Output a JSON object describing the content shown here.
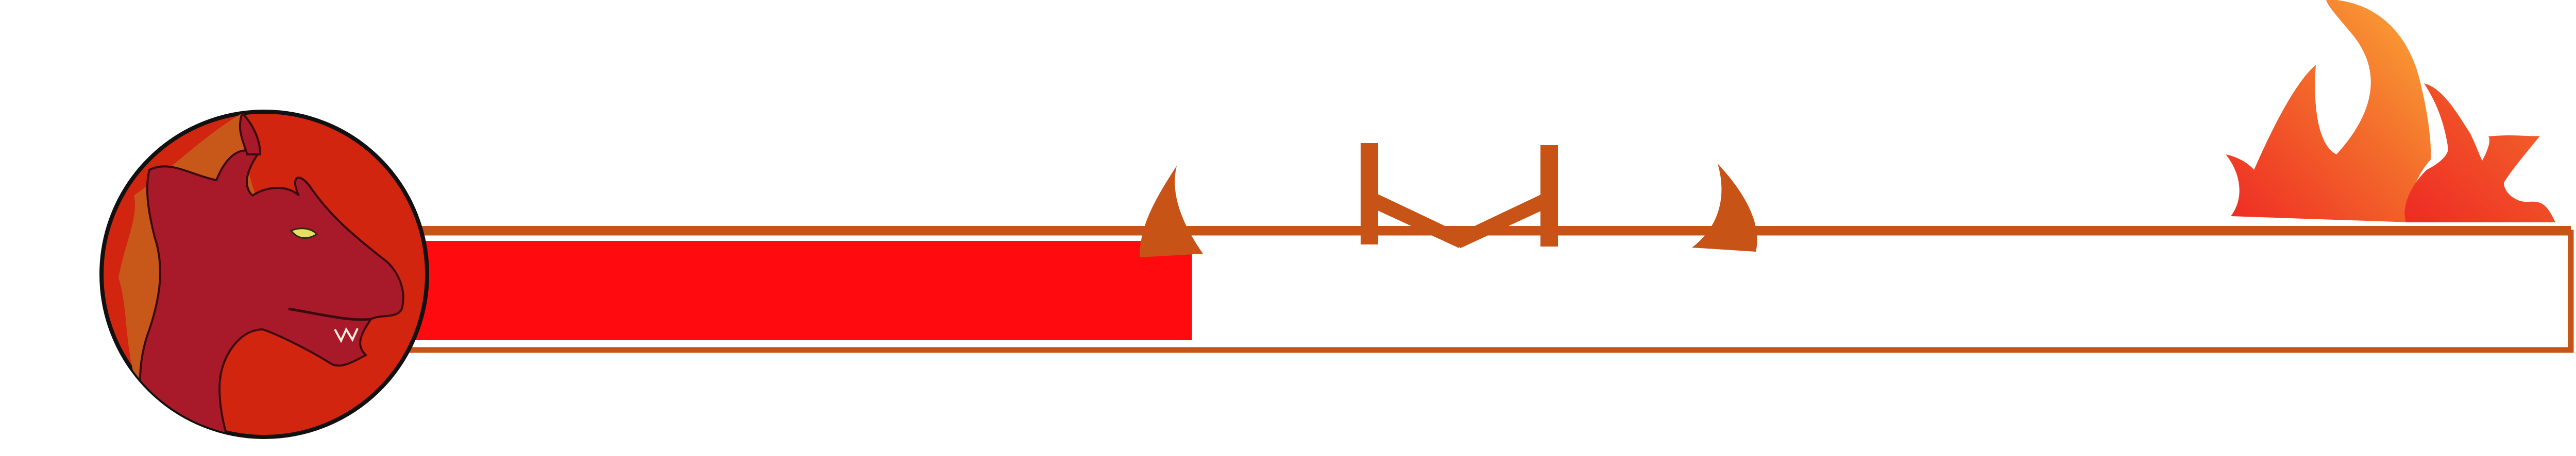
{
  "health_bar": {
    "fill_fraction": 0.362,
    "frame_color": "#C85317",
    "fill_color": "#FF0A0E",
    "track_color": "#FFFFFF"
  },
  "emblem": {
    "icon": "dragon-head-icon",
    "disc_color": "#D1250F",
    "dragon_color": "#A81A2A",
    "accent_color": "#C8581A"
  },
  "decorations": {
    "horn_color": "#C85317",
    "flame_colors": [
      "#EE2A24",
      "#F36C2B",
      "#FBAA38"
    ]
  }
}
